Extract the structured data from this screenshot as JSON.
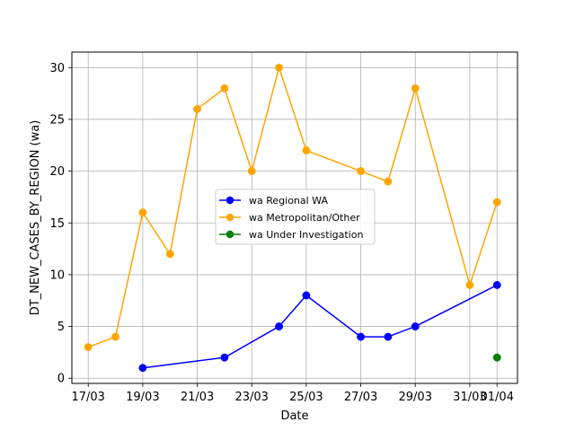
{
  "chart_data": {
    "type": "line",
    "title": "",
    "xlabel": "Date",
    "ylabel": "DT_NEW_CASES_BY_REGION (wa)",
    "x_tick_labels": [
      "17/03",
      "19/03",
      "21/03",
      "23/03",
      "25/03",
      "27/03",
      "29/03",
      "31/03",
      "01/04"
    ],
    "x_tick_days": [
      17,
      19,
      21,
      23,
      25,
      27,
      29,
      31,
      32
    ],
    "x_range_days": [
      16.4,
      32.75
    ],
    "y_ticks": [
      0,
      5,
      10,
      15,
      20,
      25,
      30
    ],
    "ylim": [
      -0.5,
      31.5
    ],
    "grid": true,
    "legend_position": "center",
    "series": [
      {
        "name": "wa Regional WA",
        "color": "#0000ff",
        "x_days": [
          19,
          22,
          24,
          25,
          27,
          28,
          29,
          32
        ],
        "dates": [
          "19/03",
          "22/03",
          "24/03",
          "25/03",
          "27/03",
          "28/03",
          "29/03",
          "01/04"
        ],
        "values": [
          1,
          2,
          5,
          8,
          4,
          4,
          5,
          9
        ]
      },
      {
        "name": "wa Metropolitan/Other",
        "color": "#ffa500",
        "x_days": [
          17,
          18,
          19,
          20,
          21,
          22,
          23,
          24,
          25,
          27,
          28,
          29,
          31,
          32
        ],
        "dates": [
          "17/03",
          "18/03",
          "19/03",
          "20/03",
          "21/03",
          "22/03",
          "23/03",
          "24/03",
          "25/03",
          "27/03",
          "28/03",
          "29/03",
          "31/03",
          "01/04"
        ],
        "values": [
          3,
          4,
          16,
          12,
          26,
          28,
          20,
          30,
          22,
          20,
          19,
          28,
          9,
          17
        ]
      },
      {
        "name": "wa Under Investigation",
        "color": "#008000",
        "x_days": [
          32
        ],
        "dates": [
          "01/04"
        ],
        "values": [
          2
        ]
      }
    ]
  }
}
